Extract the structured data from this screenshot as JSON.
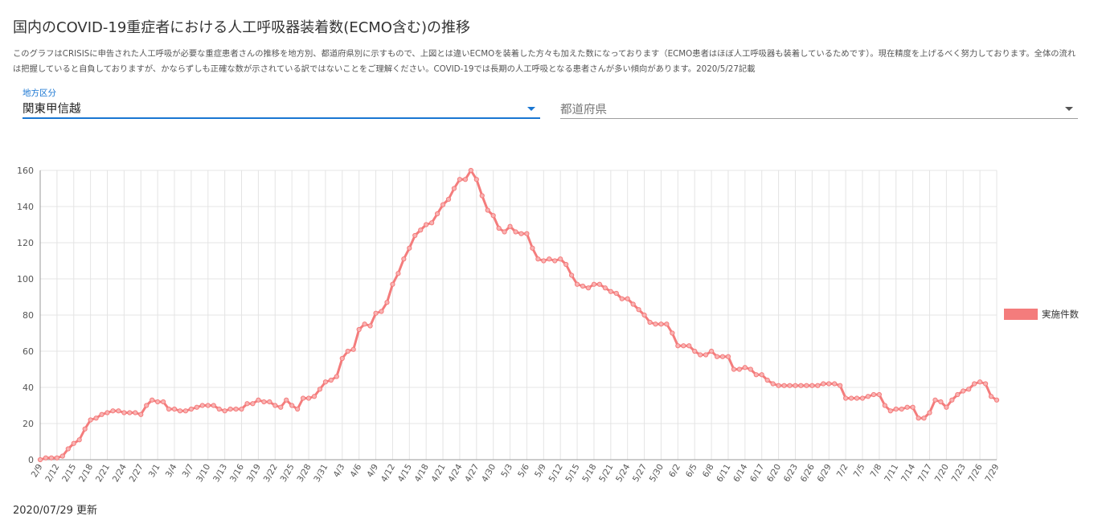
{
  "header": {
    "title": "国内のCOVID-19重症者における人工呼吸器装着数(ECMO含む)の推移",
    "description": "このグラフはCRISISに申告された人工呼吸が必要な重症患者さんの推移を地方別、都道府県別に示すもので、上図とは違いECMOを装着した方々も加えた数になっております（ECMO患者はほぼ人工呼吸器も装着しているためです）。現在精度を上げるべく努力しております。全体の流れは把握していると自負しておりますが、かならずしも正確な数が示されている訳ではないことをご理解ください。COVID-19では長期の人工呼吸となる患者さんが多い傾向があります。2020/5/27記載"
  },
  "filters": {
    "region": {
      "label": "地方区分",
      "value": "関東甲信越"
    },
    "prefecture": {
      "placeholder": "都道府県"
    }
  },
  "footer": {
    "updated": "2020/07/29 更新"
  },
  "colors": {
    "series": "#f47c7c",
    "accent": "#1976d2",
    "grid": "#e4e4e4"
  },
  "chart_data": {
    "type": "line",
    "title": "",
    "xlabel": "",
    "ylabel": "",
    "ylim": [
      0,
      160
    ],
    "yticks": [
      0,
      20,
      40,
      60,
      80,
      100,
      120,
      140,
      160
    ],
    "grid": true,
    "legend": "right",
    "x_start": "2/9",
    "x_end": "7/29",
    "xtick_labels": [
      "2/9",
      "2/12",
      "2/15",
      "2/18",
      "2/21",
      "2/24",
      "2/27",
      "3/1",
      "3/4",
      "3/7",
      "3/10",
      "3/13",
      "3/16",
      "3/19",
      "3/22",
      "3/25",
      "3/28",
      "3/31",
      "4/3",
      "4/6",
      "4/9",
      "4/12",
      "4/15",
      "4/18",
      "4/21",
      "4/24",
      "4/27",
      "4/30",
      "5/3",
      "5/6",
      "5/9",
      "5/12",
      "5/15",
      "5/18",
      "5/21",
      "5/24",
      "5/27",
      "5/30",
      "6/2",
      "6/5",
      "6/8",
      "6/11",
      "6/14",
      "6/17",
      "6/20",
      "6/23",
      "6/26",
      "6/29",
      "7/2",
      "7/5",
      "7/8",
      "7/11",
      "7/14",
      "7/17",
      "7/20",
      "7/23",
      "7/26",
      "7/29"
    ],
    "series": [
      {
        "name": "実施件数",
        "color": "#f47c7c",
        "values": [
          0,
          1,
          1,
          1,
          2,
          6,
          9,
          11,
          17,
          22,
          23,
          25,
          26,
          27,
          27,
          26,
          26,
          26,
          25,
          30,
          33,
          32,
          32,
          28,
          28,
          27,
          27,
          28,
          29,
          30,
          30,
          30,
          28,
          27,
          28,
          28,
          28,
          31,
          31,
          33,
          32,
          32,
          30,
          29,
          33,
          30,
          28,
          34,
          34,
          35,
          39,
          43,
          44,
          46,
          56,
          60,
          61,
          72,
          75,
          74,
          81,
          82,
          87,
          97,
          103,
          111,
          117,
          124,
          127,
          130,
          131,
          136,
          141,
          144,
          150,
          155,
          155,
          160,
          155,
          146,
          138,
          135,
          128,
          126,
          129,
          126,
          125,
          125,
          117,
          111,
          110,
          111,
          110,
          111,
          108,
          102,
          97,
          96,
          95,
          97,
          97,
          95,
          93,
          92,
          89,
          89,
          86,
          83,
          80,
          76,
          75,
          75,
          75,
          70,
          63,
          63,
          63,
          60,
          58,
          58,
          60,
          57,
          57,
          57,
          50,
          50,
          51,
          50,
          47,
          47,
          44,
          42,
          41,
          41,
          41,
          41,
          41,
          41,
          41,
          41,
          42,
          42,
          42,
          41,
          34,
          34,
          34,
          34,
          35,
          36,
          36,
          30,
          27,
          28,
          28,
          29,
          29,
          23,
          23,
          26,
          33,
          32,
          29,
          33,
          36,
          38,
          39,
          42,
          43,
          42,
          35,
          33
        ]
      }
    ]
  }
}
